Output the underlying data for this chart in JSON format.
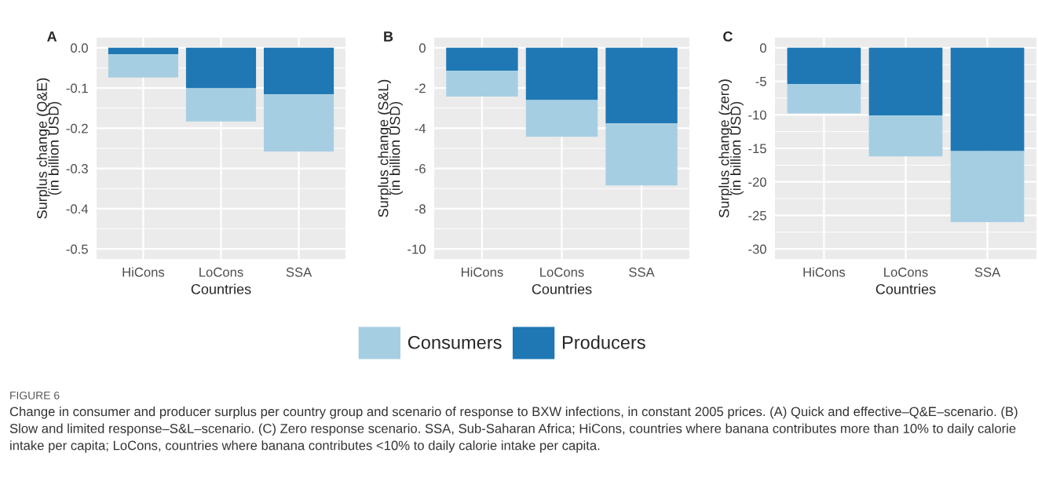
{
  "chart_data": [
    {
      "type": "bar",
      "title": "A",
      "xlabel": "Countries",
      "ylabel": "Surplus change (Q&E)\n(in billion USD)",
      "categories": [
        "HiCons",
        "LoCons",
        "SSA"
      ],
      "stacked": true,
      "grid": true,
      "series": [
        {
          "color": "#1f78b4",
          "values": [
            -0.016,
            -0.101,
            -0.116
          ]
        },
        {
          "color": "#a6cee3",
          "values": [
            -0.058,
            -0.082,
            -0.142
          ]
        }
      ],
      "ylim": [
        -0.525,
        0.025
      ],
      "yticks": [
        {
          "value": 0,
          "label": "0.0"
        },
        -0.1,
        -0.2,
        -0.3,
        -0.4,
        -0.5
      ],
      "annotations": [
        "FIGURE 6",
        "Change in consumer and producer surplus per country group and scenario of response to BXW infections, in constant 2005 prices. (A) Quick and effective–Q&E–scenario. (B) Slow and limited response–S&L–scenario. (C) Zero response scenario. SSA, Sub-Saharan Africa; HiCons, countries where banana contributes more than 10% to daily calorie intake per capita; LoCons, countries where banana contributes <10% to daily calorie intake per capita."
      ]
    },
    {
      "type": "bar",
      "title": "B",
      "xlabel": "Countries",
      "ylabel": "Surplus change (S&L)\n(in billion USD)",
      "categories": [
        "HiCons",
        "LoCons",
        "SSA"
      ],
      "stacked": true,
      "grid": true,
      "legend": "bottom",
      "series": [
        {
          "name": "Producers",
          "color": "#1f78b4",
          "values": [
            -1.14,
            -2.6,
            -3.76
          ]
        },
        {
          "name": "Consumers",
          "color": "#a6cee3",
          "values": [
            -1.29,
            -1.82,
            -3.08
          ]
        }
      ],
      "ylim": [
        -10.5,
        0.5
      ],
      "yticks": [
        0,
        -2,
        -4,
        -6,
        -8,
        -10
      ]
    },
    {
      "type": "bar",
      "title": "C",
      "xlabel": "Countries",
      "ylabel": "Surplus change (zero)\n(in billion USD)",
      "categories": [
        "HiCons",
        "LoCons",
        "SSA"
      ],
      "stacked": true,
      "grid": true,
      "series": [
        {
          "color": "#1f78b4",
          "values": [
            -5.4,
            -10.1,
            -15.4
          ]
        },
        {
          "color": "#a6cee3",
          "values": [
            -4.4,
            -6.1,
            -10.6
          ]
        }
      ],
      "ylim": [
        -31.5,
        1.5
      ],
      "yticks": [
        0,
        -5,
        -10,
        -15,
        -20,
        -25,
        -30
      ]
    }
  ]
}
